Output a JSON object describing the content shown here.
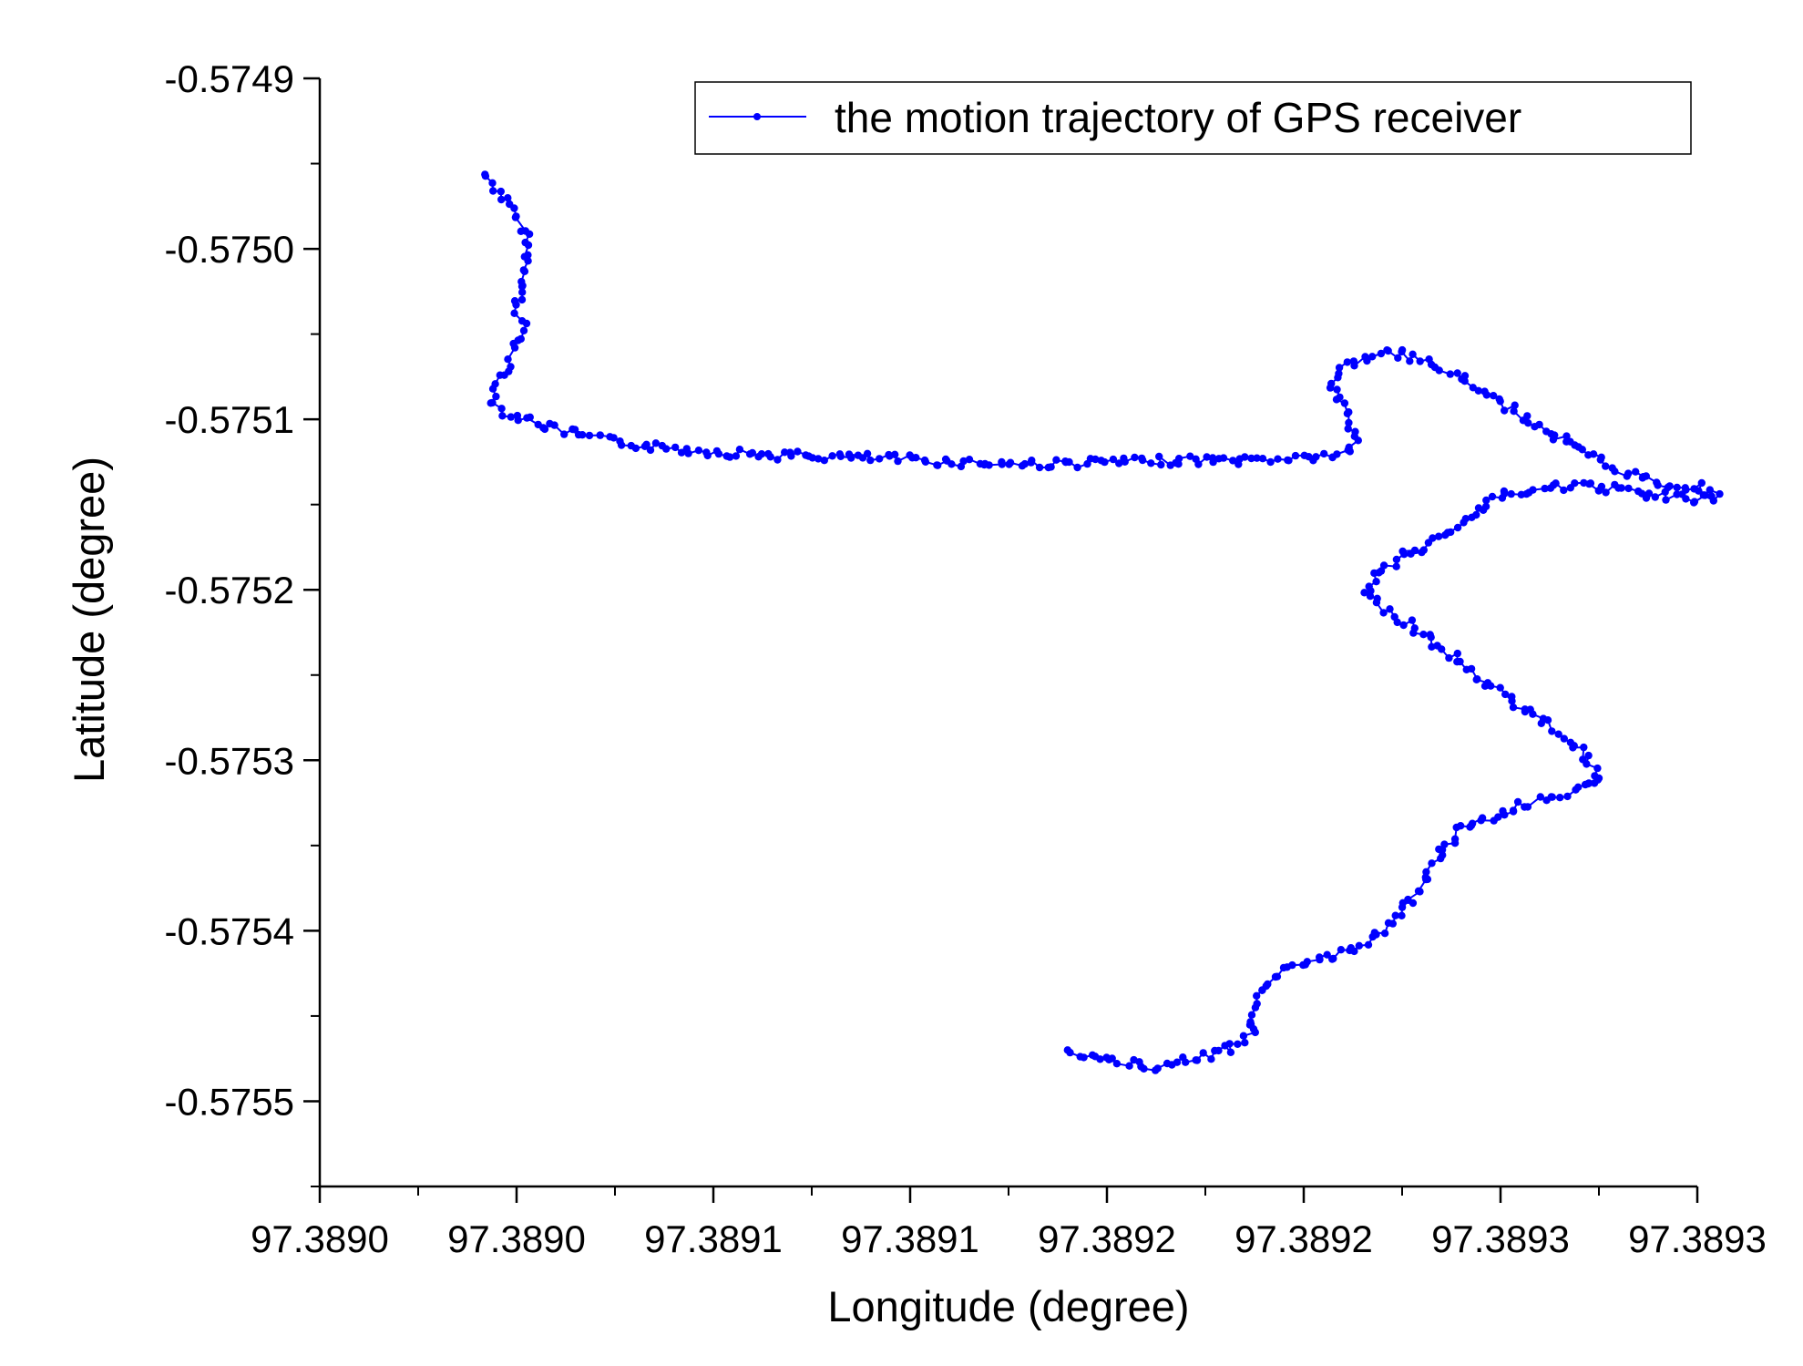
{
  "chart_data": {
    "type": "scatter",
    "xlabel": "Longitude (degree)",
    "ylabel": "Latitude (degree)",
    "xlim": [
      97.38895,
      97.3893
    ],
    "ylim": [
      -0.57555,
      -0.5749
    ],
    "x_tick_values": [
      97.38895,
      97.389,
      97.38905,
      97.3891,
      97.38915,
      97.3892,
      97.38925,
      97.3893
    ],
    "x_tick_labels": [
      "97.3890",
      "97.3890",
      "97.3891",
      "97.3891",
      "97.3892",
      "97.3892",
      "97.3893",
      "97.3893"
    ],
    "y_tick_values": [
      -0.5749,
      -0.575,
      -0.5751,
      -0.5752,
      -0.5753,
      -0.5754,
      -0.5755
    ],
    "y_tick_labels": [
      "-0.5749",
      "-0.5750",
      "-0.5751",
      "-0.5752",
      "-0.5753",
      "-0.5754",
      "-0.5755"
    ],
    "grid": false,
    "legend_position": "top-right",
    "series": [
      {
        "name": "the motion trajectory of GPS receiver",
        "color": "#0000ff",
        "marker": "dot",
        "x": [
          97.388992,
          97.388995,
          97.388999,
          97.389002,
          97.389003,
          97.389002,
          97.389,
          97.389002,
          97.388999,
          97.388997,
          97.388995,
          97.388994,
          97.388996,
          97.389,
          97.389005,
          97.389012,
          97.389022,
          97.389035,
          97.38905,
          97.389065,
          97.38908,
          97.389095,
          97.38911,
          97.389125,
          97.38914,
          97.38915,
          97.38916,
          97.389168,
          97.389178,
          97.389186,
          97.389195,
          97.389204,
          97.389212,
          97.389214,
          97.38921,
          97.389207,
          97.38921,
          97.389218,
          97.389226,
          97.389233,
          97.389243,
          97.389255,
          97.389268,
          97.38928,
          97.389292,
          97.3893,
          97.389305,
          97.3893,
          97.38929,
          97.389276,
          97.389262,
          97.389252,
          97.389246,
          97.389241,
          97.389234,
          97.389226,
          97.389219,
          97.389216,
          97.389222,
          97.38923,
          97.389238,
          97.389246,
          97.389253,
          97.38926,
          97.389266,
          97.38927,
          97.389274,
          97.389276,
          97.389272,
          97.389268,
          97.389262,
          97.389254,
          97.389246,
          97.389239,
          97.389236,
          97.389233,
          97.38923,
          97.389226,
          97.38922,
          97.389212,
          97.389202,
          97.389194,
          97.389189,
          97.389187,
          97.389186,
          97.389188,
          97.389182,
          97.389176,
          97.38917,
          97.389163,
          97.389155,
          97.389148,
          97.38914
        ],
        "y": [
          -0.574956,
          -0.574964,
          -0.574978,
          -0.57499,
          -0.575005,
          -0.57502,
          -0.575035,
          -0.575048,
          -0.57506,
          -0.57507,
          -0.57508,
          -0.575088,
          -0.575094,
          -0.575098,
          -0.575102,
          -0.575107,
          -0.575112,
          -0.575116,
          -0.575119,
          -0.575121,
          -0.575122,
          -0.575123,
          -0.575125,
          -0.575126,
          -0.575126,
          -0.575125,
          -0.575125,
          -0.575124,
          -0.575124,
          -0.575124,
          -0.575123,
          -0.575122,
          -0.57512,
          -0.57511,
          -0.575095,
          -0.57508,
          -0.57507,
          -0.575062,
          -0.575062,
          -0.575068,
          -0.57508,
          -0.575098,
          -0.575115,
          -0.57513,
          -0.575138,
          -0.57514,
          -0.575145,
          -0.575147,
          -0.575145,
          -0.57514,
          -0.575139,
          -0.575143,
          -0.57515,
          -0.57516,
          -0.57517,
          -0.57518,
          -0.57519,
          -0.575203,
          -0.575213,
          -0.575225,
          -0.57524,
          -0.575254,
          -0.575265,
          -0.575275,
          -0.575285,
          -0.575295,
          -0.575304,
          -0.575312,
          -0.575316,
          -0.575318,
          -0.575322,
          -0.575328,
          -0.575334,
          -0.575342,
          -0.575352,
          -0.575362,
          -0.575372,
          -0.575385,
          -0.5754,
          -0.575412,
          -0.575419,
          -0.575425,
          -0.575433,
          -0.575443,
          -0.575452,
          -0.57546,
          -0.575468,
          -0.575473,
          -0.575476,
          -0.57548,
          -0.575478,
          -0.575474,
          -0.57547
        ]
      }
    ]
  }
}
